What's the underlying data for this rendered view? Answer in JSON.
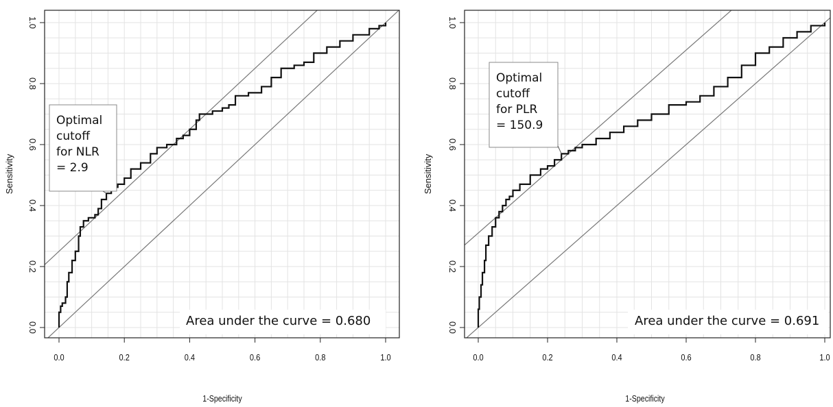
{
  "chart_data": [
    {
      "type": "line",
      "xlabel": "1-Specificity",
      "ylabel": "Sensitivity",
      "xlim": [
        0.0,
        1.0
      ],
      "ylim": [
        0.0,
        1.0
      ],
      "grid": true,
      "x_ticks": [
        "0.0",
        "0.2",
        "0.4",
        "0.6",
        "0.8",
        "1.0"
      ],
      "y_ticks": [
        "0.0",
        "0.2",
        "0.4",
        "0.6",
        "0.8",
        "1.0"
      ],
      "reference_lines": [
        {
          "intercept": 0.0,
          "slope": 1
        },
        {
          "intercept": 0.25,
          "slope": 1
        }
      ],
      "curve": {
        "x": [
          0.0,
          0.0,
          0.005,
          0.01,
          0.02,
          0.025,
          0.03,
          0.04,
          0.05,
          0.06,
          0.065,
          0.075,
          0.09,
          0.11,
          0.12,
          0.13,
          0.145,
          0.16,
          0.18,
          0.2,
          0.22,
          0.25,
          0.28,
          0.3,
          0.33,
          0.36,
          0.38,
          0.4,
          0.42,
          0.43,
          0.47,
          0.5,
          0.52,
          0.54,
          0.58,
          0.62,
          0.65,
          0.68,
          0.72,
          0.75,
          0.78,
          0.82,
          0.86,
          0.9,
          0.95,
          0.98,
          1.0
        ],
        "y": [
          0.0,
          0.05,
          0.07,
          0.08,
          0.1,
          0.15,
          0.18,
          0.22,
          0.25,
          0.3,
          0.33,
          0.35,
          0.36,
          0.37,
          0.39,
          0.42,
          0.44,
          0.46,
          0.47,
          0.49,
          0.52,
          0.54,
          0.57,
          0.59,
          0.6,
          0.62,
          0.63,
          0.65,
          0.68,
          0.7,
          0.71,
          0.72,
          0.73,
          0.76,
          0.77,
          0.79,
          0.82,
          0.85,
          0.86,
          0.87,
          0.9,
          0.92,
          0.94,
          0.96,
          0.98,
          0.99,
          1.0
        ]
      },
      "cutoff_point": {
        "x": 0.145,
        "y": 0.44
      },
      "cutoff_label": [
        "Optimal",
        "cutoff",
        "for NLR",
        "= 2.9"
      ],
      "auc_text": "Area under the curve = 0.680"
    },
    {
      "type": "line",
      "xlabel": "1-Specificity",
      "ylabel": "Sensitivity",
      "xlim": [
        0.0,
        1.0
      ],
      "ylim": [
        0.0,
        1.0
      ],
      "grid": true,
      "x_ticks": [
        "0.0",
        "0.2",
        "0.4",
        "0.6",
        "0.8",
        "1.0"
      ],
      "y_ticks": [
        "0.0",
        "0.2",
        "0.4",
        "0.6",
        "0.8",
        "1.0"
      ],
      "reference_lines": [
        {
          "intercept": 0.0,
          "slope": 1
        },
        {
          "intercept": 0.31,
          "slope": 1
        }
      ],
      "curve": {
        "x": [
          0.0,
          0.0,
          0.003,
          0.008,
          0.012,
          0.018,
          0.022,
          0.03,
          0.04,
          0.05,
          0.06,
          0.07,
          0.08,
          0.09,
          0.1,
          0.12,
          0.15,
          0.18,
          0.2,
          0.22,
          0.24,
          0.26,
          0.28,
          0.3,
          0.34,
          0.38,
          0.42,
          0.46,
          0.5,
          0.55,
          0.6,
          0.64,
          0.68,
          0.72,
          0.76,
          0.8,
          0.84,
          0.88,
          0.92,
          0.96,
          1.0
        ],
        "y": [
          0.0,
          0.06,
          0.1,
          0.14,
          0.18,
          0.22,
          0.27,
          0.3,
          0.33,
          0.36,
          0.38,
          0.4,
          0.42,
          0.43,
          0.45,
          0.47,
          0.5,
          0.52,
          0.53,
          0.55,
          0.57,
          0.58,
          0.59,
          0.6,
          0.62,
          0.64,
          0.66,
          0.68,
          0.7,
          0.73,
          0.74,
          0.76,
          0.79,
          0.82,
          0.86,
          0.9,
          0.92,
          0.95,
          0.97,
          0.99,
          1.0
        ]
      },
      "cutoff_point": {
        "x": 0.24,
        "y": 0.57
      },
      "cutoff_label": [
        "Optimal",
        "cutoff",
        "for PLR",
        "= 150.9"
      ],
      "auc_text": "Area under the curve = 0.691"
    }
  ]
}
